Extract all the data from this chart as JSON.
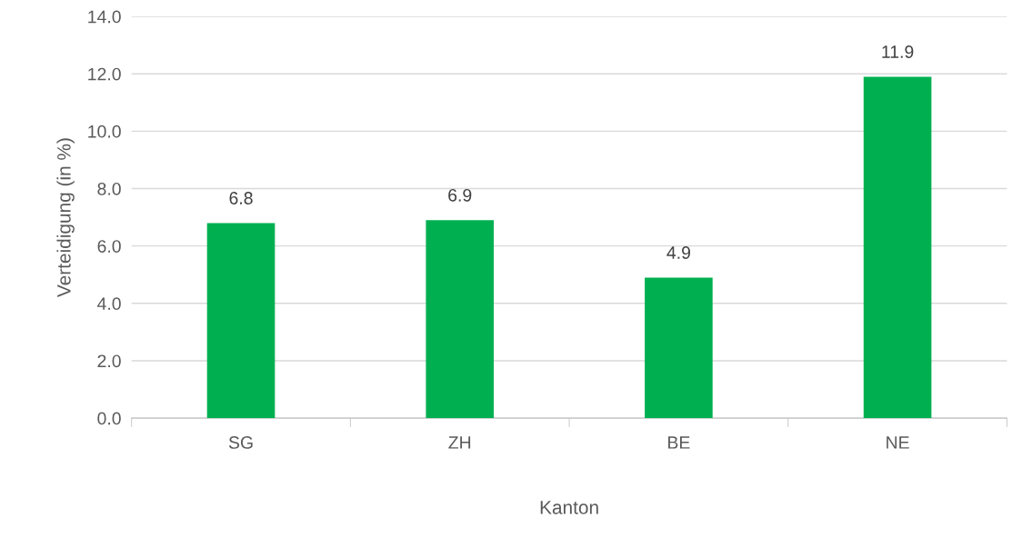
{
  "chart_data": {
    "type": "bar",
    "xlabel": "Kanton",
    "ylabel": "Verteidigung (in %)",
    "categories": [
      "SG",
      "ZH",
      "BE",
      "NE"
    ],
    "values": [
      6.8,
      6.9,
      4.9,
      11.9
    ],
    "color": "#00b050",
    "ylim": [
      0,
      14
    ],
    "yticks": [
      {
        "value": 0,
        "label": "0.0"
      },
      {
        "value": 2,
        "label": "2.0"
      },
      {
        "value": 4,
        "label": "4.0"
      },
      {
        "value": 6,
        "label": "6.0"
      },
      {
        "value": 8,
        "label": "8.0"
      },
      {
        "value": 10,
        "label": "10.0"
      },
      {
        "value": 12,
        "label": "12.0"
      },
      {
        "value": 14,
        "label": "14.0"
      }
    ],
    "grid": "y",
    "data_labels": true,
    "legend": false
  }
}
